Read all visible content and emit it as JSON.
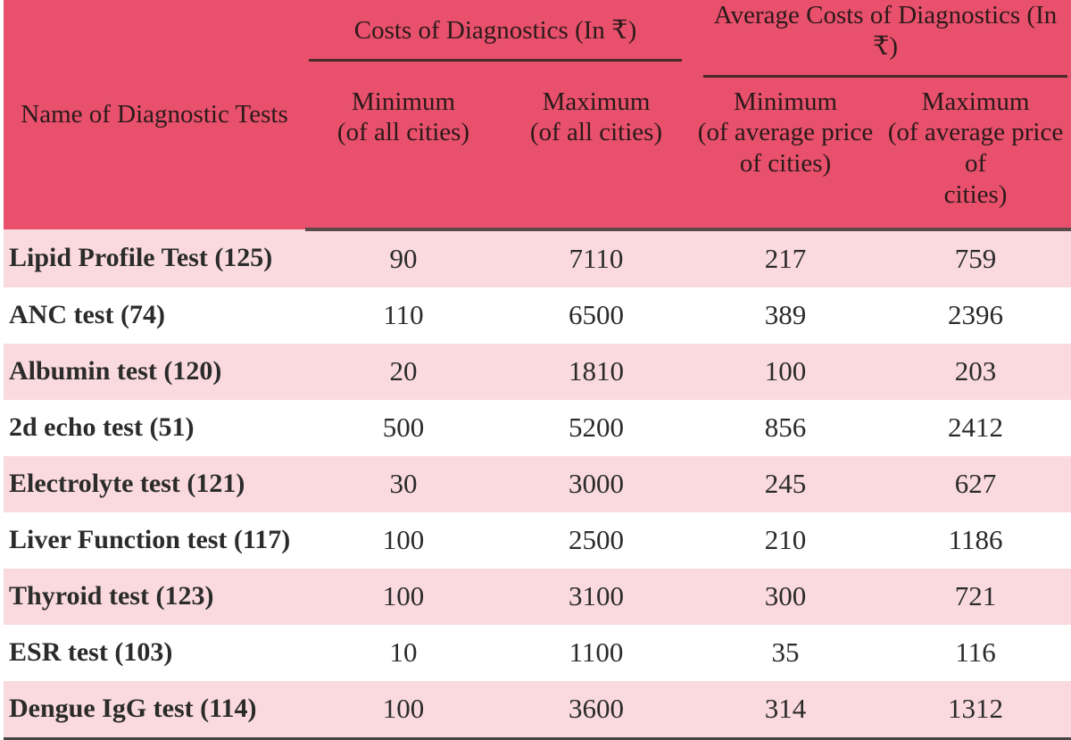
{
  "header": {
    "name_col": "Name of Diagnostic Tests",
    "group1": "Costs of Diagnostics  (In ₹)",
    "group2": "Average Costs of Diagnostics (In ₹)",
    "g1_min": [
      "Minimum",
      "(of all cities)"
    ],
    "g1_max": [
      "Maximum",
      "(of all cities)"
    ],
    "g2_min": [
      "Minimum",
      "(of average price",
      "of cities)"
    ],
    "g2_max": [
      "Maximum",
      "(of average price of",
      "cities)"
    ]
  },
  "rows": [
    {
      "name": "Lipid Profile Test (125)",
      "min": "90",
      "max": "7110",
      "avg_min": "217",
      "avg_max": "759"
    },
    {
      "name": "ANC test (74)",
      "min": "110",
      "max": "6500",
      "avg_min": "389",
      "avg_max": "2396"
    },
    {
      "name": "Albumin test (120)",
      "min": "20",
      "max": "1810",
      "avg_min": "100",
      "avg_max": "203"
    },
    {
      "name": "2d echo test (51)",
      "min": "500",
      "max": "5200",
      "avg_min": "856",
      "avg_max": "2412"
    },
    {
      "name": "Electrolyte test (121)",
      "min": "30",
      "max": "3000",
      "avg_min": "245",
      "avg_max": "627"
    },
    {
      "name": "Liver Function test (117)",
      "min": "100",
      "max": "2500",
      "avg_min": "210",
      "avg_max": "1186"
    },
    {
      "name": "Thyroid test (123)",
      "min": "100",
      "max": "3100",
      "avg_min": "300",
      "avg_max": "721"
    },
    {
      "name": "ESR test (103)",
      "min": "10",
      "max": "1100",
      "avg_min": "35",
      "avg_max": "116"
    },
    {
      "name": "Dengue IgG test (114)",
      "min": "100",
      "max": "3600",
      "avg_min": "314",
      "avg_max": "1312"
    }
  ]
}
